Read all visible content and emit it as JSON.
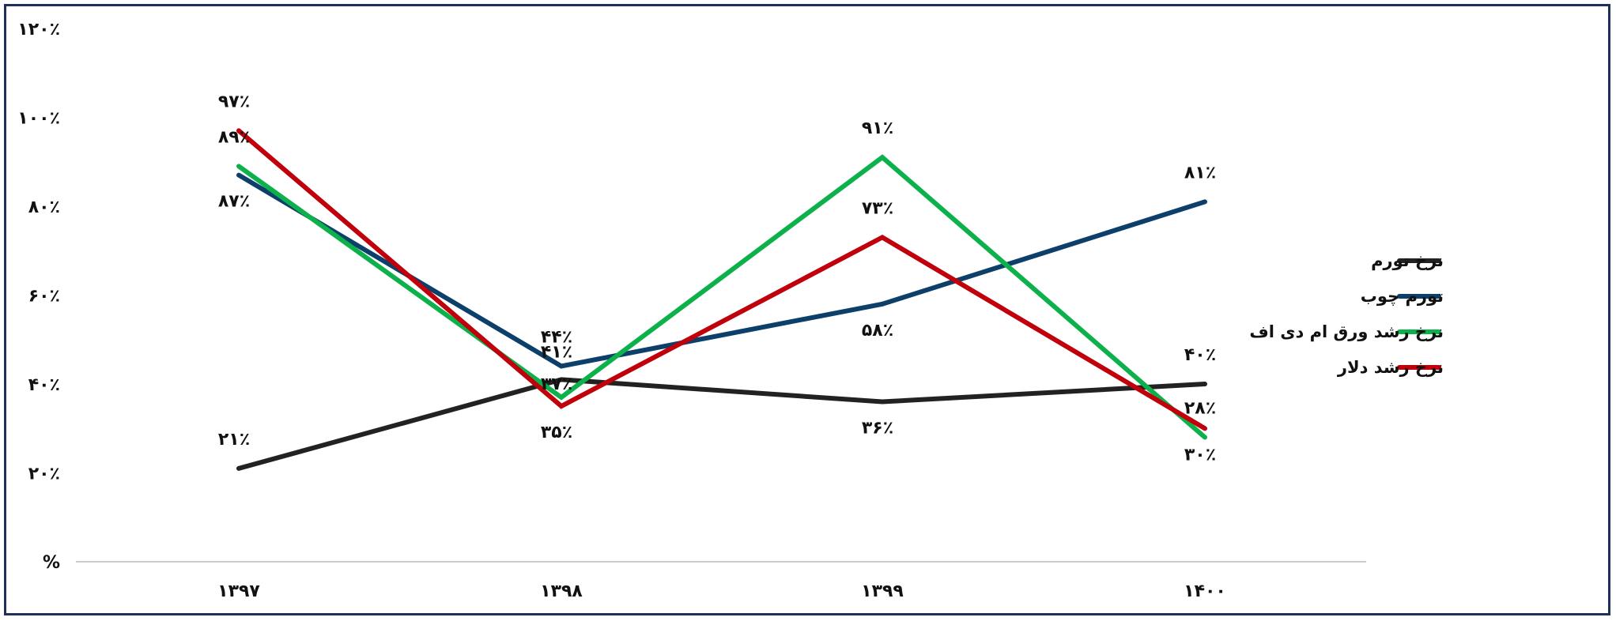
{
  "chart_data": {
    "type": "line",
    "categories": [
      "۱۳۹۷",
      "۱۳۹۸",
      "۱۳۹۹",
      "۱۴۰۰"
    ],
    "ylim": [
      0,
      120
    ],
    "y_ticks": [
      {
        "value": 0,
        "label": "%"
      },
      {
        "value": 20,
        "label": "۲۰٪"
      },
      {
        "value": 40,
        "label": "۴۰٪"
      },
      {
        "value": 60,
        "label": "۶۰٪"
      },
      {
        "value": 80,
        "label": "۸۰٪"
      },
      {
        "value": 100,
        "label": "۱۰۰٪"
      },
      {
        "value": 120,
        "label": "۱۲۰٪"
      }
    ],
    "grid": false,
    "legend_position": "right",
    "series": [
      {
        "name": "نرخ تورم",
        "color": "#222222",
        "values": [
          21,
          41,
          36,
          40
        ],
        "labels": [
          "۲۱٪",
          "",
          "۳۶٪",
          "۴۰٪"
        ],
        "label_pos": [
          "above",
          "above",
          "below",
          "above"
        ]
      },
      {
        "name": "تورم چوب",
        "color": "#0d3f6b",
        "values": [
          87,
          44,
          58,
          81
        ],
        "labels": [
          "۸۷٪",
          "۴۴٪",
          "۵۸٪",
          "۸۱٪"
        ],
        "label_pos": [
          "below",
          "above",
          "below",
          "above"
        ]
      },
      {
        "name": "نرخ رشد ورق ام دی اف",
        "color": "#0db14b",
        "values": [
          89,
          37,
          91,
          28
        ],
        "labels": [
          "۸۹٪",
          "",
          "۹۱٪",
          "۲۸٪"
        ],
        "label_pos": [
          "above",
          "above",
          "above",
          "above"
        ]
      },
      {
        "name": "نرخ رشد دلار",
        "color": "#c0000b",
        "values": [
          97,
          35,
          73,
          30
        ],
        "labels": [
          "۹۷٪",
          "۳۵٪",
          "۷۳٪",
          "۳۰٪"
        ],
        "label_pos": [
          "above",
          "below",
          "above",
          "below"
        ]
      }
    ],
    "overlapping_labels": [
      "۴۱٪",
      "۳۷٪"
    ]
  }
}
